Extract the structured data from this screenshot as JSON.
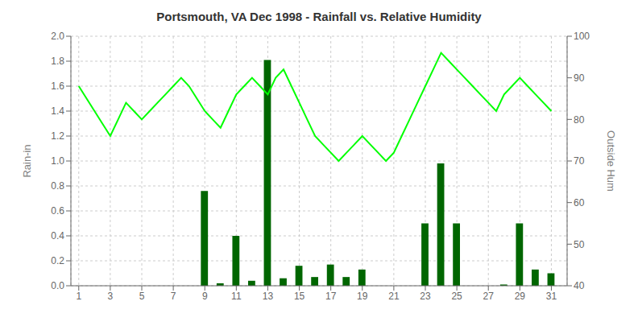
{
  "chart_data": {
    "type": "bar",
    "title": "Portsmouth, VA Dec 1998 - Rainfall vs. Relative Humidity",
    "ylabel": "Rain-in",
    "y2label": "Outside Hum",
    "xlim": [
      0.5,
      32
    ],
    "xticks": [
      1,
      3,
      5,
      7,
      9,
      11,
      13,
      15,
      17,
      19,
      21,
      23,
      25,
      27,
      29,
      31
    ],
    "ylim": [
      0.0,
      2.0
    ],
    "yticks": [
      {
        "value": 0.0,
        "label": "0.0"
      },
      0.2,
      0.4,
      0.6,
      0.8,
      {
        "value": 1.0,
        "label": "1.0"
      },
      1.2,
      1.4,
      1.6,
      1.8,
      {
        "value": 2.0,
        "label": "2.0"
      }
    ],
    "y2lim": [
      40,
      100
    ],
    "y2ticks": [
      40,
      50,
      60,
      70,
      80,
      90,
      100
    ],
    "grid": true,
    "series": [
      {
        "type": "bar",
        "color": "#006600",
        "x": [
          1,
          2,
          3,
          4,
          5,
          6,
          7,
          8,
          9,
          10,
          11,
          12,
          13,
          14,
          15,
          16,
          17,
          18,
          19,
          20,
          21,
          22,
          23,
          24,
          25,
          26,
          27,
          28,
          29,
          30,
          31
        ],
        "values": [
          0.0,
          0.0,
          0.0,
          0.0,
          0.0,
          0.0,
          0.0,
          0.0,
          0.76,
          0.02,
          0.4,
          0.04,
          1.81,
          0.06,
          0.16,
          0.07,
          0.17,
          0.07,
          0.13,
          0.0,
          0.0,
          0.0,
          0.5,
          0.98,
          0.5,
          0.0,
          0.0,
          0.01,
          0.5,
          0.13,
          0.1
        ]
      },
      {
        "type": "line",
        "color": "#00ff00",
        "axis": "y2",
        "x": [
          1,
          1.5,
          2,
          2.5,
          3,
          3.5,
          4,
          4.5,
          5,
          5.5,
          6,
          6.5,
          7,
          7.5,
          8,
          8.5,
          9,
          9.5,
          10,
          10.5,
          11,
          11.5,
          12,
          12.5,
          13,
          13.5,
          14,
          14.5,
          15,
          15.5,
          16,
          16.5,
          17,
          17.5,
          18,
          18.5,
          19,
          19.5,
          20,
          20.5,
          21,
          21.5,
          22,
          22.5,
          23,
          23.5,
          24,
          24.5,
          25,
          25.5,
          26,
          26.5,
          27,
          27.5,
          28,
          28.5,
          29,
          29.5,
          30,
          30.5,
          31
        ],
        "values": [
          88,
          85,
          82,
          79,
          76,
          80,
          84,
          82,
          80,
          82,
          84,
          86,
          88,
          90,
          88,
          85,
          82,
          80,
          78,
          82,
          86,
          88,
          90,
          88,
          86,
          90,
          92,
          88,
          84,
          80,
          76,
          74,
          72,
          70,
          72,
          74,
          76,
          74,
          72,
          70,
          72,
          76,
          80,
          84,
          88,
          92,
          96,
          94,
          92,
          90,
          88,
          86,
          84,
          82,
          86,
          88,
          90,
          88,
          86,
          84,
          82
        ]
      }
    ]
  }
}
